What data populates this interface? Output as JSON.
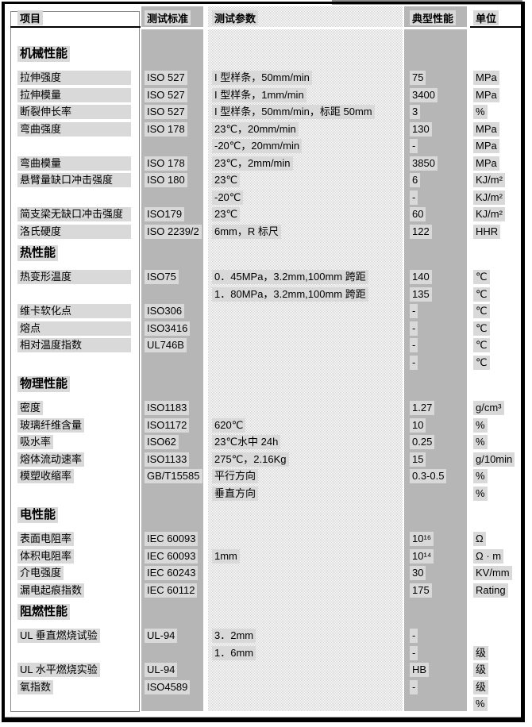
{
  "header": {
    "item": "项目",
    "standard": "测试标准",
    "params": "测试参数",
    "typical": "典型性能",
    "unit": "单位"
  },
  "sections": [
    {
      "title": "机械性能",
      "rows": [
        {
          "item": "拉伸强度",
          "standard": "ISO 527",
          "param": "I 型样条，50mm/min",
          "value": "75",
          "unit": "MPa"
        },
        {
          "item": "拉伸模量",
          "standard": "ISO 527",
          "param": "I 型样条，1mm/min",
          "value": "3400",
          "unit": "MPa"
        },
        {
          "item": "断裂伸长率",
          "standard": "ISO 527",
          "param": "I 型样条，50mm/min，标距 50mm",
          "value": "3",
          "unit": "%"
        },
        {
          "item": "弯曲强度",
          "standard": "ISO 178",
          "param": "23℃，20mm/min",
          "value": "130",
          "unit": "MPa"
        },
        {
          "item": "",
          "standard": "",
          "param": "-20℃，20mm/min",
          "value": "-",
          "unit": "MPa"
        },
        {
          "item": "弯曲模量",
          "standard": "ISO 178",
          "param": "23℃，2mm/min",
          "value": "3850",
          "unit": "MPa"
        },
        {
          "item": "悬臂量缺口冲击强度",
          "standard": "ISO 180",
          "param": "23℃",
          "value": "6",
          "unit": "KJ/m²"
        },
        {
          "item": "",
          "standard": "",
          "param": "-20℃",
          "value": "-",
          "unit": "KJ/m²"
        },
        {
          "item": "简支梁无缺口冲击强度",
          "standard": "ISO179",
          "param": "23℃",
          "value": "60",
          "unit": "KJ/m²"
        },
        {
          "item": "洛氏硬度",
          "standard": "ISO 2239/2",
          "param": "6mm，R 标尺",
          "value": "122",
          "unit": "HHR"
        }
      ]
    },
    {
      "title": "热性能",
      "rows": [
        {
          "item": "热变形温度",
          "standard": "ISO75",
          "param": "0．45MPa，3.2mm,100mm 跨距",
          "value": "140",
          "unit": "℃"
        },
        {
          "item": "",
          "standard": "",
          "param": "1．80MPa，3.2mm,100mm 跨距",
          "value": "135",
          "unit": "℃"
        },
        {
          "item": "维卡软化点",
          "standard": "ISO306",
          "param": "",
          "value": "-",
          "unit": "℃"
        },
        {
          "item": "熔点",
          "standard": "ISO3416",
          "param": "",
          "value": "-",
          "unit": "℃"
        },
        {
          "item": "相对温度指数",
          "standard": "UL746B",
          "param": "",
          "value": "-",
          "unit": "℃"
        },
        {
          "item": "",
          "standard": "",
          "param": "",
          "value": "-",
          "unit": "℃"
        }
      ]
    },
    {
      "title": "物理性能",
      "rows": [
        {
          "item": "密度",
          "standard": "ISO1183",
          "param": "",
          "value": "1.27",
          "unit": "g/cm³"
        },
        {
          "item": "玻璃纤维含量",
          "standard": "ISO1172",
          "param": "620℃",
          "value": "10",
          "unit": "%"
        },
        {
          "item": "吸水率",
          "standard": "ISO62",
          "param": "23℃水中 24h",
          "value": "0.25",
          "unit": "%"
        },
        {
          "item": "熔体流动速率",
          "standard": "ISO1133",
          "param": "275℃，2.16Kg",
          "value": "15",
          "unit": "g/10min"
        },
        {
          "item": "模塑收缩率",
          "standard": "GB/T15585",
          "param": "平行方向",
          "value": "0.3-0.5",
          "unit": "%"
        },
        {
          "item": "",
          "standard": "",
          "param": "垂直方向",
          "value": "",
          "unit": "%"
        }
      ]
    },
    {
      "title": "电性能",
      "rows": [
        {
          "item": "表面电阻率",
          "standard": "IEC 60093",
          "param": "",
          "value": "10¹⁶",
          "unit": "Ω"
        },
        {
          "item": "体积电阻率",
          "standard": "IEC 60093",
          "param": "1mm",
          "value": "10¹⁴",
          "unit": "Ω · m"
        },
        {
          "item": "介电强度",
          "standard": "IEC 60243",
          "param": "",
          "value": "30",
          "unit": "KV/mm"
        },
        {
          "item": "漏电起痕指数",
          "standard": "IEC 60112",
          "param": "",
          "value": "175",
          "unit": "Rating"
        }
      ]
    },
    {
      "title": "阻燃性能",
      "rows": [
        {
          "item": "UL 垂直燃烧试验",
          "standard": "UL-94",
          "param": "3．2mm",
          "value": "-",
          "unit": ""
        },
        {
          "item": "",
          "standard": "",
          "param": "1．6mm",
          "value": "-",
          "unit": "级"
        },
        {
          "item": "UL 水平燃烧实验",
          "standard": "UL-94",
          "param": "",
          "value": "HB",
          "unit": "级"
        },
        {
          "item": "氧指数",
          "standard": "ISO4589",
          "param": "",
          "value": "-",
          "unit": "级"
        },
        {
          "item": "",
          "standard": "",
          "param": "",
          "value": "",
          "unit": "%"
        }
      ]
    }
  ],
  "colors": {
    "column_gray": "#b6b6b6",
    "hatch_gray": "#d4d4d4",
    "text_highlight": "#d9d9d9",
    "frame_black": "#000000"
  }
}
